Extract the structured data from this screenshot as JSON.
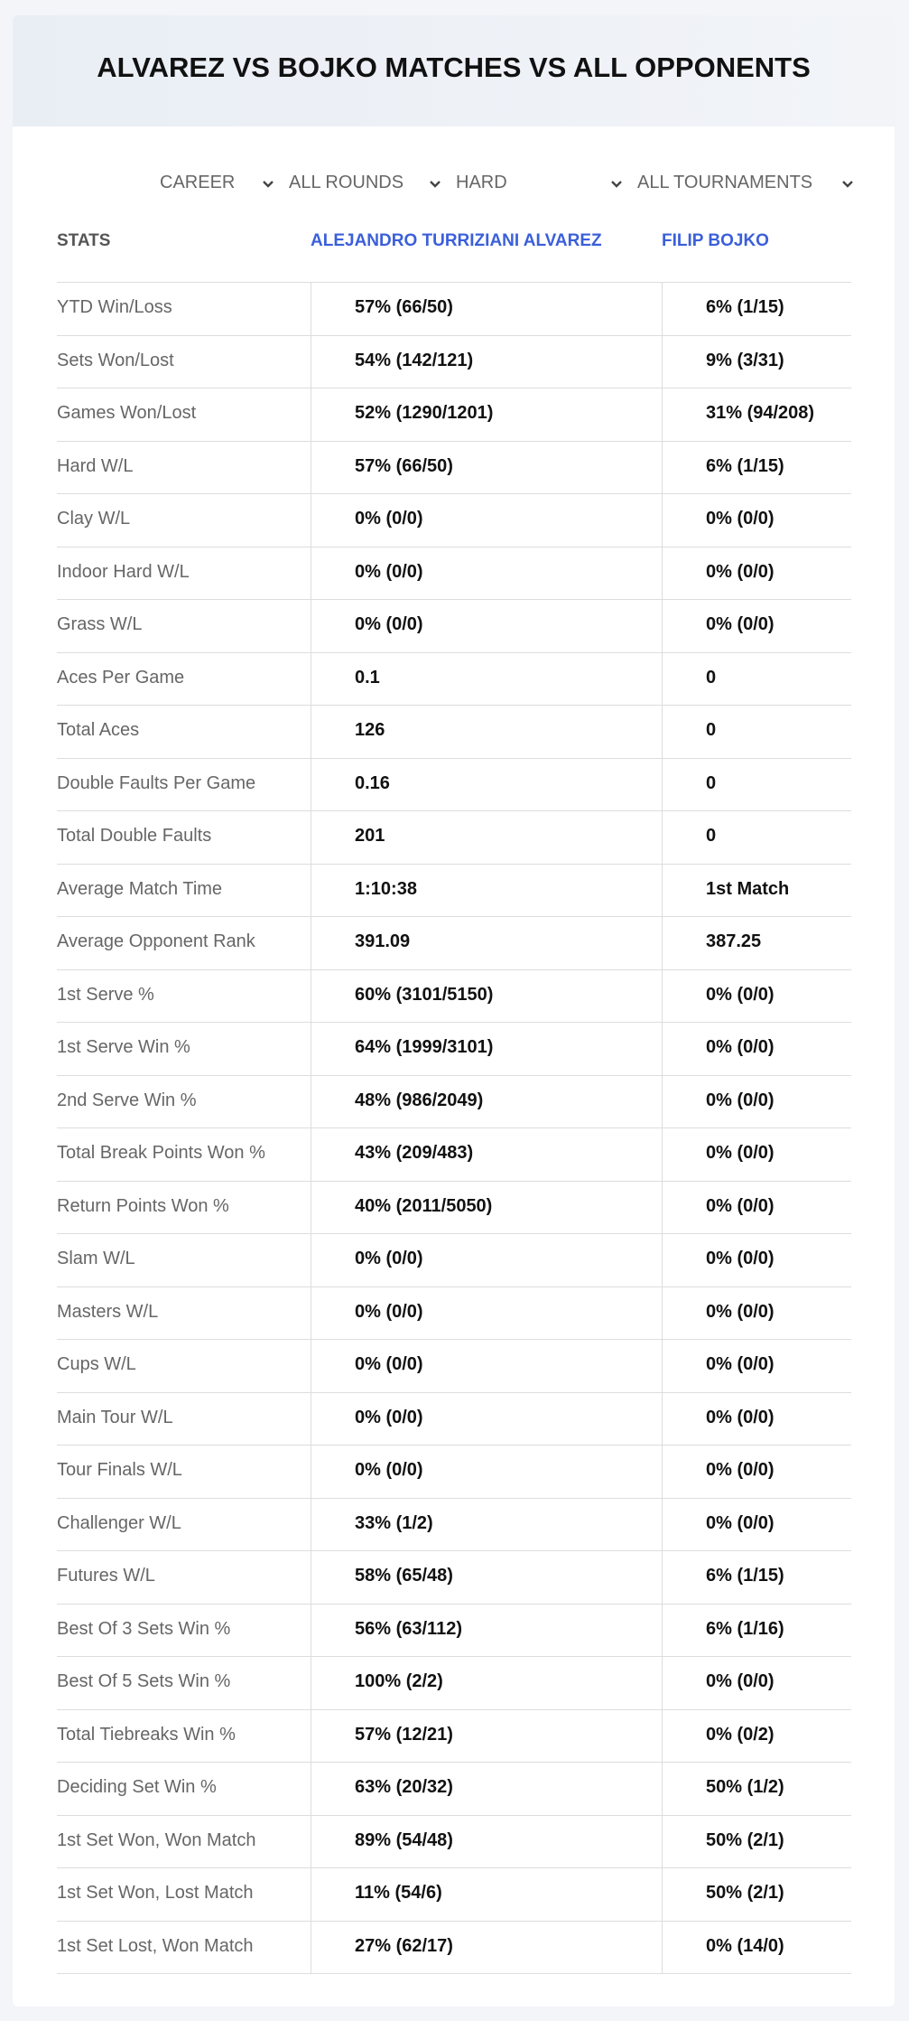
{
  "header": {
    "title": "ALVAREZ VS BOJKO MATCHES VS ALL OPPONENTS"
  },
  "filters": [
    "CAREER",
    "ALL ROUNDS",
    "HARD",
    "ALL TOURNAMENTS"
  ],
  "table": {
    "columns": [
      "STATS",
      "ALEJANDRO TURRIZIANI ALVAREZ",
      "FILIP BOJKO"
    ],
    "rows": [
      [
        "YTD Win/Loss",
        "57% (66/50)",
        "6% (1/15)"
      ],
      [
        "Sets Won/Lost",
        "54% (142/121)",
        "9% (3/31)"
      ],
      [
        "Games Won/Lost",
        "52% (1290/1201)",
        "31% (94/208)"
      ],
      [
        "Hard W/L",
        "57% (66/50)",
        "6% (1/15)"
      ],
      [
        "Clay W/L",
        "0% (0/0)",
        "0% (0/0)"
      ],
      [
        "Indoor Hard W/L",
        "0% (0/0)",
        "0% (0/0)"
      ],
      [
        "Grass W/L",
        "0% (0/0)",
        "0% (0/0)"
      ],
      [
        "Aces Per Game",
        "0.1",
        "0"
      ],
      [
        "Total Aces",
        "126",
        "0"
      ],
      [
        "Double Faults Per Game",
        "0.16",
        "0"
      ],
      [
        "Total Double Faults",
        "201",
        "0"
      ],
      [
        "Average Match Time",
        "1:10:38",
        "1st Match"
      ],
      [
        "Average Opponent Rank",
        "391.09",
        "387.25"
      ],
      [
        "1st Serve %",
        "60% (3101/5150)",
        "0% (0/0)"
      ],
      [
        "1st Serve Win %",
        "64% (1999/3101)",
        "0% (0/0)"
      ],
      [
        "2nd Serve Win %",
        "48% (986/2049)",
        "0% (0/0)"
      ],
      [
        "Total Break Points Won %",
        "43% (209/483)",
        "0% (0/0)"
      ],
      [
        "Return Points Won %",
        "40% (2011/5050)",
        "0% (0/0)"
      ],
      [
        "Slam W/L",
        "0% (0/0)",
        "0% (0/0)"
      ],
      [
        "Masters W/L",
        "0% (0/0)",
        "0% (0/0)"
      ],
      [
        "Cups W/L",
        "0% (0/0)",
        "0% (0/0)"
      ],
      [
        "Main Tour W/L",
        "0% (0/0)",
        "0% (0/0)"
      ],
      [
        "Tour Finals W/L",
        "0% (0/0)",
        "0% (0/0)"
      ],
      [
        "Challenger W/L",
        "33% (1/2)",
        "0% (0/0)"
      ],
      [
        "Futures W/L",
        "58% (65/48)",
        "6% (1/15)"
      ],
      [
        "Best Of 3 Sets Win %",
        "56% (63/112)",
        "6% (1/16)"
      ],
      [
        "Best Of 5 Sets Win %",
        "100% (2/2)",
        "0% (0/0)"
      ],
      [
        "Total Tiebreaks Win %",
        "57% (12/21)",
        "0% (0/2)"
      ],
      [
        "Deciding Set Win %",
        "63% (20/32)",
        "50% (1/2)"
      ],
      [
        "1st Set Won, Won Match",
        "89% (54/48)",
        "50% (2/1)"
      ],
      [
        "1st Set Won, Lost Match",
        "11% (54/6)",
        "50% (2/1)"
      ],
      [
        "1st Set Lost, Won Match",
        "27% (62/17)",
        "0% (14/0)"
      ]
    ]
  }
}
